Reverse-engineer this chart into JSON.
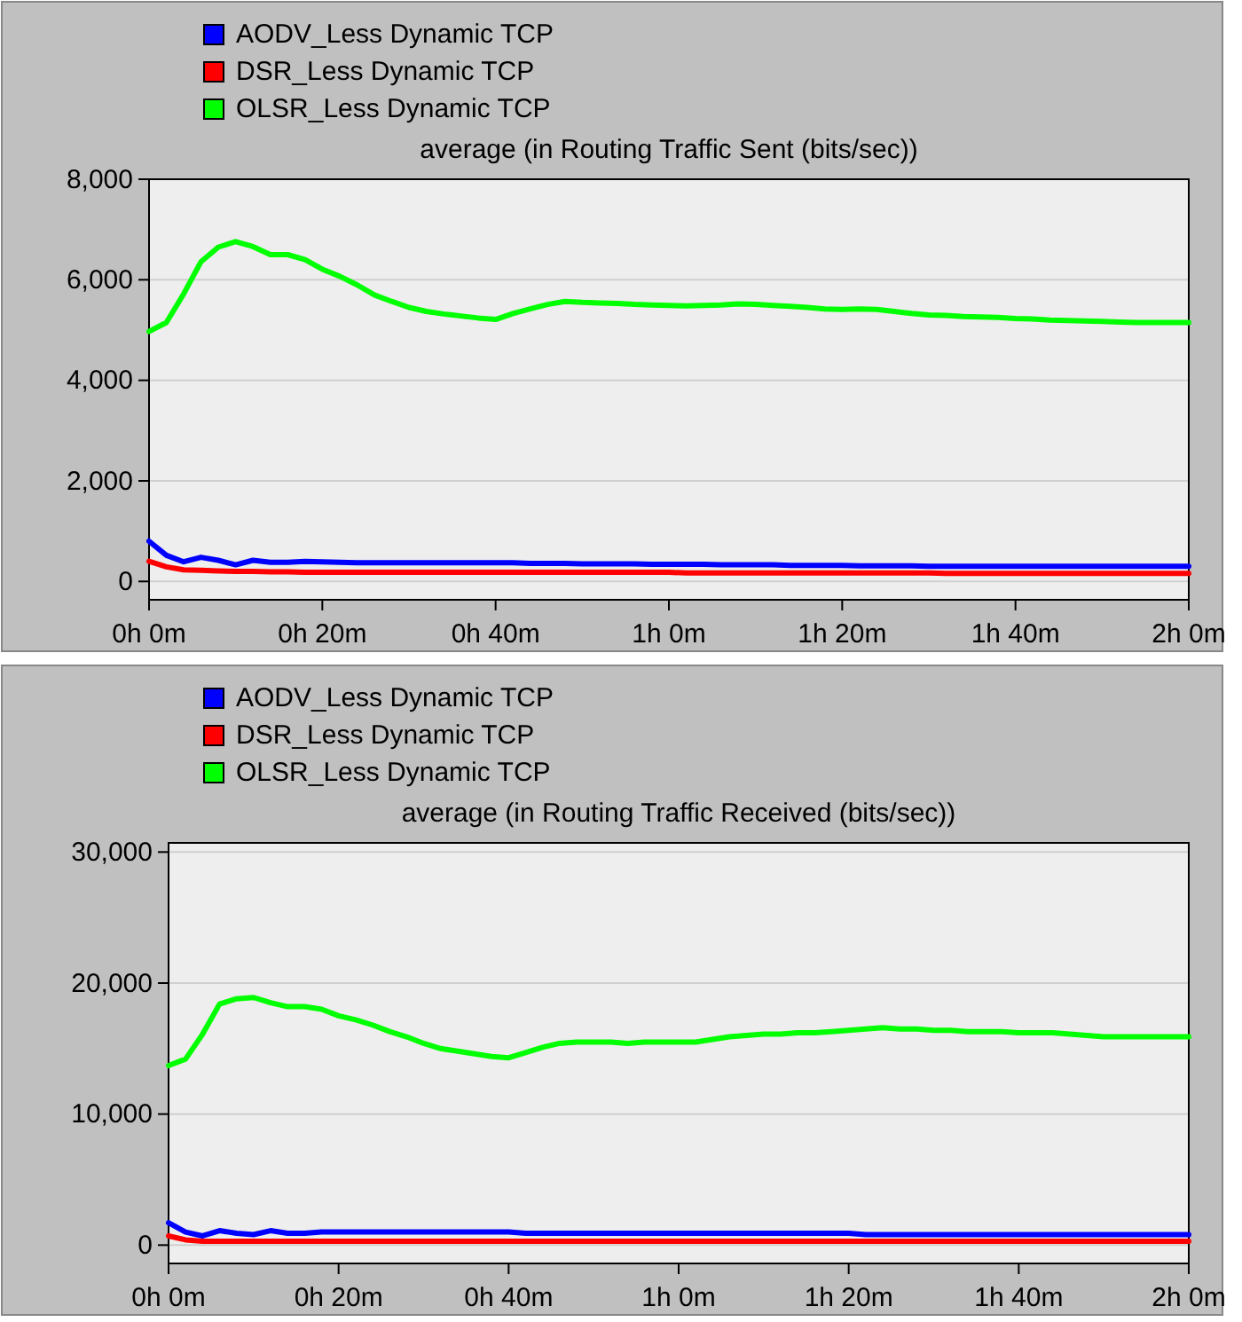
{
  "chart_data": [
    {
      "type": "line",
      "title": "average (in Routing Traffic Sent (bits/sec))",
      "legend": "top left",
      "grid": "y",
      "categories": [
        "0h 0m",
        null,
        null,
        null,
        null,
        null,
        null,
        null,
        null,
        null,
        "0h 20m",
        null,
        null,
        null,
        null,
        null,
        null,
        null,
        null,
        null,
        "0h 40m",
        null,
        null,
        null,
        null,
        null,
        null,
        null,
        null,
        null,
        "1h 0m",
        null,
        null,
        null,
        null,
        null,
        null,
        null,
        null,
        null,
        "1h 20m",
        null,
        null,
        null,
        null,
        null,
        null,
        null,
        null,
        null,
        "1h 40m",
        null,
        null,
        null,
        null,
        null,
        null,
        null,
        null,
        null,
        "2h 0m"
      ],
      "ylim": [
        -365,
        8000
      ],
      "yticks": [
        {
          "value": 0,
          "label": "0"
        },
        {
          "value": 2000,
          "label": "2,000"
        },
        {
          "value": 4000,
          "label": "4,000"
        },
        {
          "value": 6000,
          "label": "6,000"
        },
        {
          "value": 8000,
          "label": "8,000"
        }
      ],
      "series": [
        {
          "name": "AODV_Less Dynamic TCP",
          "color": "#0000ff",
          "values": [
            800,
            520,
            390,
            480,
            420,
            330,
            420,
            380,
            380,
            400,
            390,
            380,
            370,
            370,
            370,
            370,
            370,
            370,
            370,
            370,
            370,
            370,
            360,
            360,
            360,
            350,
            350,
            350,
            350,
            340,
            340,
            340,
            340,
            330,
            330,
            330,
            330,
            320,
            320,
            320,
            320,
            310,
            310,
            310,
            310,
            300,
            300,
            300,
            300,
            300,
            300,
            300,
            300,
            300,
            300,
            300,
            300,
            300,
            300,
            300,
            300
          ]
        },
        {
          "name": "DSR_Less Dynamic TCP",
          "color": "#ff0000",
          "values": [
            400,
            290,
            230,
            220,
            210,
            200,
            200,
            190,
            190,
            180,
            180,
            180,
            180,
            180,
            180,
            180,
            180,
            180,
            180,
            180,
            180,
            180,
            180,
            180,
            180,
            180,
            180,
            180,
            180,
            180,
            180,
            170,
            170,
            170,
            170,
            170,
            170,
            170,
            170,
            170,
            170,
            170,
            170,
            170,
            170,
            170,
            160,
            160,
            160,
            160,
            160,
            160,
            160,
            160,
            160,
            160,
            160,
            160,
            160,
            160,
            160
          ]
        },
        {
          "name": "OLSR_Less Dynamic TCP",
          "color": "#00ff00",
          "values": [
            4970,
            5150,
            5720,
            6360,
            6650,
            6760,
            6660,
            6500,
            6500,
            6400,
            6210,
            6070,
            5900,
            5700,
            5570,
            5450,
            5370,
            5320,
            5280,
            5240,
            5210,
            5330,
            5420,
            5510,
            5570,
            5550,
            5540,
            5530,
            5510,
            5500,
            5490,
            5480,
            5490,
            5500,
            5520,
            5510,
            5490,
            5470,
            5450,
            5420,
            5410,
            5420,
            5410,
            5370,
            5330,
            5300,
            5290,
            5270,
            5260,
            5250,
            5230,
            5220,
            5200,
            5190,
            5180,
            5170,
            5160,
            5150,
            5150,
            5150,
            5150
          ]
        }
      ]
    },
    {
      "type": "line",
      "title": "average (in Routing Traffic Received (bits/sec))",
      "legend": "top left",
      "grid": "y",
      "categories": [
        "0h 0m",
        null,
        null,
        null,
        null,
        null,
        null,
        null,
        null,
        null,
        "0h 20m",
        null,
        null,
        null,
        null,
        null,
        null,
        null,
        null,
        null,
        "0h 40m",
        null,
        null,
        null,
        null,
        null,
        null,
        null,
        null,
        null,
        "1h 0m",
        null,
        null,
        null,
        null,
        null,
        null,
        null,
        null,
        null,
        "1h 20m",
        null,
        null,
        null,
        null,
        null,
        null,
        null,
        null,
        null,
        "1h 40m",
        null,
        null,
        null,
        null,
        null,
        null,
        null,
        null,
        null,
        "2h 0m"
      ],
      "ylim": [
        -1400,
        30700
      ],
      "yticks": [
        {
          "value": 0,
          "label": "0"
        },
        {
          "value": 10000,
          "label": "10,000"
        },
        {
          "value": 20000,
          "label": "20,000"
        },
        {
          "value": 30000,
          "label": "30,000"
        }
      ],
      "series": [
        {
          "name": "AODV_Less Dynamic TCP",
          "color": "#0000ff",
          "values": [
            1700,
            1000,
            700,
            1100,
            900,
            800,
            1100,
            900,
            900,
            1000,
            1000,
            1000,
            1000,
            1000,
            1000,
            1000,
            1000,
            1000,
            1000,
            1000,
            1000,
            900,
            900,
            900,
            900,
            900,
            900,
            900,
            900,
            900,
            900,
            900,
            900,
            900,
            900,
            900,
            900,
            900,
            900,
            900,
            900,
            800,
            800,
            800,
            800,
            800,
            800,
            800,
            800,
            800,
            800,
            800,
            800,
            800,
            800,
            800,
            800,
            800,
            800,
            800,
            800
          ]
        },
        {
          "name": "DSR_Less Dynamic TCP",
          "color": "#ff0000",
          "values": [
            700,
            400,
            300,
            300,
            300,
            300,
            300,
            300,
            300,
            300,
            300,
            300,
            300,
            300,
            300,
            300,
            300,
            300,
            300,
            300,
            300,
            300,
            300,
            300,
            300,
            300,
            300,
            300,
            300,
            300,
            300,
            300,
            300,
            300,
            300,
            300,
            300,
            300,
            300,
            300,
            300,
            300,
            300,
            300,
            300,
            300,
            300,
            300,
            300,
            300,
            300,
            300,
            300,
            300,
            300,
            300,
            300,
            300,
            300,
            300,
            300
          ]
        },
        {
          "name": "OLSR_Less Dynamic TCP",
          "color": "#00ff00",
          "values": [
            13700,
            14200,
            16100,
            18400,
            18800,
            18900,
            18500,
            18200,
            18200,
            18000,
            17500,
            17200,
            16800,
            16300,
            15900,
            15400,
            15000,
            14800,
            14600,
            14400,
            14300,
            14700,
            15100,
            15400,
            15500,
            15500,
            15500,
            15400,
            15500,
            15500,
            15500,
            15500,
            15700,
            15900,
            16000,
            16100,
            16100,
            16200,
            16200,
            16300,
            16400,
            16500,
            16600,
            16500,
            16500,
            16400,
            16400,
            16300,
            16300,
            16300,
            16200,
            16200,
            16200,
            16100,
            16000,
            15900,
            15900,
            15900,
            15900,
            15900,
            15900
          ]
        }
      ]
    }
  ]
}
